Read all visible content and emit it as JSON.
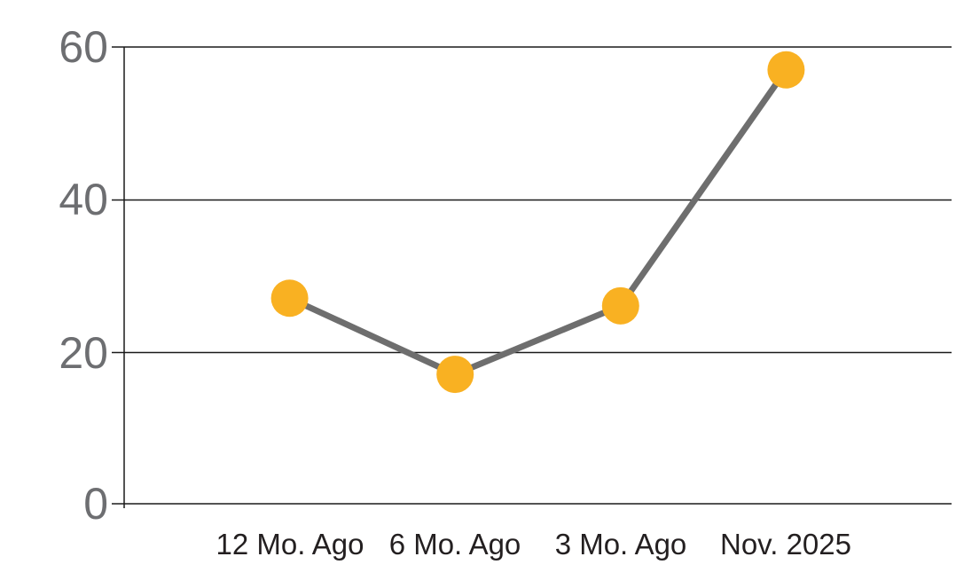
{
  "chart_data": {
    "type": "line",
    "title": "",
    "xlabel": "",
    "ylabel": "",
    "categories": [
      "12 Mo. Ago",
      "6 Mo. Ago",
      "3 Mo. Ago",
      "Nov. 2025"
    ],
    "values": [
      27,
      17,
      26,
      57
    ],
    "ylim": [
      0,
      60
    ],
    "yticks": [
      0,
      20,
      40,
      60
    ],
    "ytick_labels_top_to_bottom": [
      "60",
      "40",
      "20",
      "0"
    ],
    "grid": "horizontal gridlines at each y tick",
    "legend_position": "none",
    "colors": {
      "marker": "#F9B122",
      "line": "#6E6E6E",
      "axis_and_grid": "#1A1A1A",
      "y_tick_text": "#6D6E71",
      "x_tick_text": "#231F20",
      "background": "#FFFFFF"
    }
  }
}
